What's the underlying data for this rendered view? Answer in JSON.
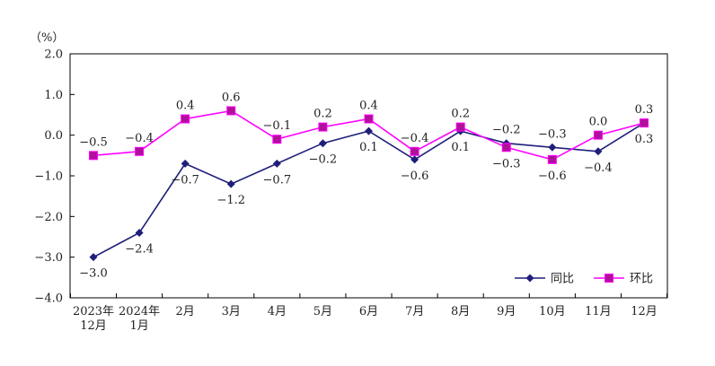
{
  "chart_data": {
    "type": "line",
    "unit_label": "（%）",
    "categories": [
      [
        "2023年",
        "12月"
      ],
      [
        "2024年",
        "1月"
      ],
      [
        "2月"
      ],
      [
        "3月"
      ],
      [
        "4月"
      ],
      [
        "5月"
      ],
      [
        "6月"
      ],
      [
        "7月"
      ],
      [
        "8月"
      ],
      [
        "9月"
      ],
      [
        "10月"
      ],
      [
        "11月"
      ],
      [
        "12月"
      ]
    ],
    "ylim": [
      -4.0,
      2.0
    ],
    "yticks": [
      2.0,
      1.0,
      0.0,
      -1.0,
      -2.0,
      -3.0,
      -4.0
    ],
    "ytick_labels": [
      "2.0",
      "1.0",
      "0.0",
      "−1.0",
      "−2.0",
      "−3.0",
      "−4.0"
    ],
    "grid": false,
    "legend_position": "bottom-right",
    "series": [
      {
        "name": "同比",
        "color": "#1f1f7a",
        "marker": "diamond",
        "values": [
          -3.0,
          -2.4,
          -0.7,
          -1.2,
          -0.7,
          -0.2,
          0.1,
          -0.6,
          0.1,
          -0.2,
          -0.3,
          -0.4,
          0.3
        ],
        "labels": [
          "−3.0",
          "−2.4",
          "−0.7",
          "−1.2",
          "−0.7",
          "−0.2",
          "0.1",
          "−0.6",
          "0.1",
          "−0.2",
          "−0.3",
          "−0.4",
          "0.3"
        ],
        "label_side": [
          "below",
          "below",
          "below",
          "below",
          "below",
          "below",
          "below",
          "below",
          "below",
          "above",
          "above",
          "below",
          "below"
        ]
      },
      {
        "name": "环比",
        "color": "#ff00ff",
        "marker_fill": "#b0109a",
        "marker": "square",
        "values": [
          -0.5,
          -0.4,
          0.4,
          0.6,
          -0.1,
          0.2,
          0.4,
          -0.4,
          0.2,
          -0.3,
          -0.6,
          0.0,
          0.3
        ],
        "labels": [
          "−0.5",
          "−0.4",
          "0.4",
          "0.6",
          "−0.1",
          "0.2",
          "0.4",
          "−0.4",
          "0.2",
          "−0.3",
          "−0.6",
          "0.0",
          "0.3"
        ],
        "label_side": [
          "above",
          "above",
          "above",
          "above",
          "above",
          "above",
          "above",
          "above",
          "above",
          "below",
          "below",
          "above",
          "above"
        ]
      }
    ]
  }
}
